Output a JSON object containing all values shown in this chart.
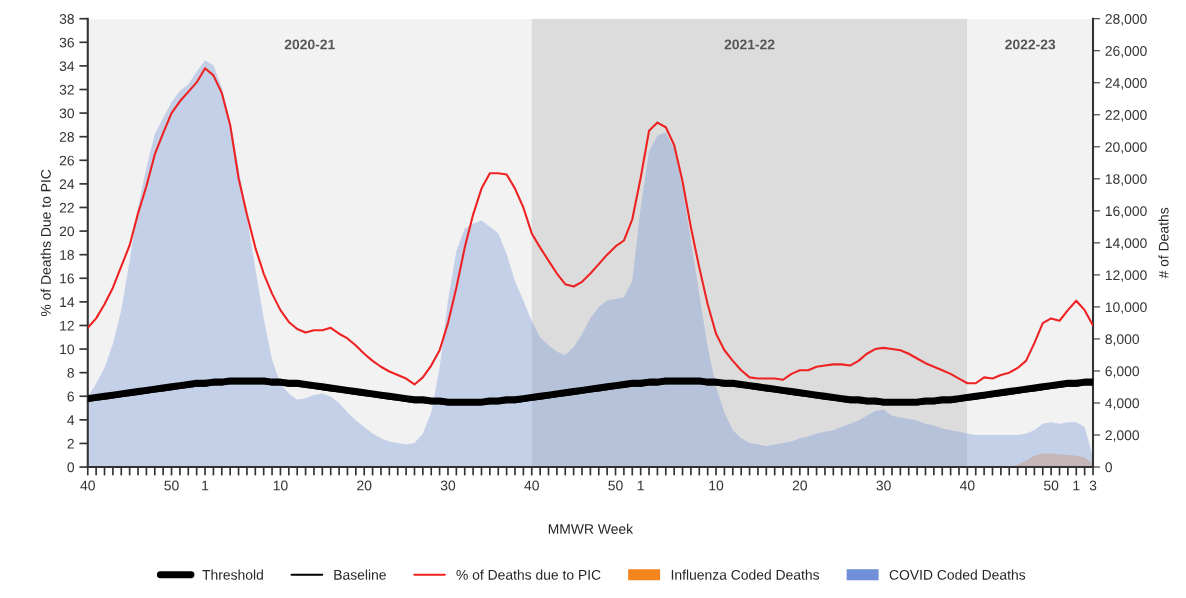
{
  "chart_data": {
    "type": "line",
    "xlabel": "MMWR Week",
    "ylabel": "% of Deaths Due to PIC",
    "y2label": "# of Deaths",
    "categories": [
      "40",
      null,
      null,
      null,
      null,
      null,
      null,
      null,
      null,
      null,
      "50",
      null,
      null,
      null,
      "1",
      null,
      null,
      null,
      null,
      null,
      null,
      null,
      null,
      "10",
      null,
      null,
      null,
      null,
      null,
      null,
      null,
      null,
      null,
      "20",
      null,
      null,
      null,
      null,
      null,
      null,
      null,
      null,
      null,
      "30",
      null,
      null,
      null,
      null,
      null,
      null,
      null,
      null,
      null,
      "40",
      null,
      null,
      null,
      null,
      null,
      null,
      null,
      null,
      null,
      "50",
      null,
      null,
      "1",
      null,
      null,
      null,
      null,
      null,
      null,
      null,
      null,
      "10",
      null,
      null,
      null,
      null,
      null,
      null,
      null,
      null,
      null,
      "20",
      null,
      null,
      null,
      null,
      null,
      null,
      null,
      null,
      null,
      "30",
      null,
      null,
      null,
      null,
      null,
      null,
      null,
      null,
      null,
      "40",
      null,
      null,
      null,
      null,
      null,
      null,
      null,
      null,
      null,
      "50",
      null,
      null,
      "1",
      null,
      "3"
    ],
    "ylim": [
      0,
      38
    ],
    "yticks": [
      0,
      2,
      4,
      6,
      8,
      10,
      12,
      14,
      16,
      18,
      20,
      22,
      24,
      26,
      28,
      30,
      32,
      34,
      36,
      38
    ],
    "y2lim": [
      0,
      28000
    ],
    "y2ticks": [
      0,
      {
        "value": 2000,
        "label": "2,000"
      },
      {
        "value": 4000,
        "label": "4,000"
      },
      {
        "value": 6000,
        "label": "6,000"
      },
      {
        "value": 8000,
        "label": "8,000"
      },
      {
        "value": 10000,
        "label": "10,000"
      },
      {
        "value": 12000,
        "label": "12,000"
      },
      {
        "value": 14000,
        "label": "14,000"
      },
      {
        "value": 16000,
        "label": "16,000"
      },
      {
        "value": 18000,
        "label": "18,000"
      },
      {
        "value": 20000,
        "label": "20,000"
      },
      {
        "value": 22000,
        "label": "22,000"
      },
      {
        "value": 24000,
        "label": "24,000"
      },
      {
        "value": 26000,
        "label": "26,000"
      },
      {
        "value": 28000,
        "label": "28,000"
      }
    ],
    "annotations": [
      "2020-21",
      "2021-22",
      "2022-23"
    ],
    "grid": false,
    "legend": "bottom",
    "series": [
      {
        "name": "Threshold",
        "color": "#000000",
        "values": [
          5.8,
          5.9,
          6.0,
          6.1,
          6.2,
          6.3,
          6.4,
          6.5,
          6.6,
          6.7,
          6.8,
          6.9,
          7.0,
          7.1,
          7.1,
          7.2,
          7.2,
          7.3,
          7.3,
          7.3,
          7.3,
          7.3,
          7.2,
          7.2,
          7.1,
          7.1,
          7.0,
          6.9,
          6.8,
          6.7,
          6.6,
          6.5,
          6.4,
          6.3,
          6.2,
          6.1,
          6.0,
          5.9,
          5.8,
          5.7,
          5.7,
          5.6,
          5.6,
          5.5,
          5.5,
          5.5,
          5.5,
          5.5,
          5.6,
          5.6,
          5.7,
          5.7,
          5.8,
          5.9,
          6.0,
          6.1,
          6.2,
          6.3,
          6.4,
          6.5,
          6.6,
          6.7,
          6.8,
          6.9,
          7.0,
          7.1,
          7.1,
          7.2,
          7.2,
          7.3,
          7.3,
          7.3,
          7.3,
          7.3,
          7.2,
          7.2,
          7.1,
          7.1,
          7.0,
          6.9,
          6.8,
          6.7,
          6.6,
          6.5,
          6.4,
          6.3,
          6.2,
          6.1,
          6.0,
          5.9,
          5.8,
          5.7,
          5.7,
          5.6,
          5.6,
          5.5,
          5.5,
          5.5,
          5.5,
          5.5,
          5.6,
          5.6,
          5.7,
          5.7,
          5.8,
          5.9,
          6.0,
          6.1,
          6.2,
          6.3,
          6.4,
          6.5,
          6.6,
          6.7,
          6.8,
          6.9,
          7.0,
          7.1,
          7.1,
          7.2,
          7.2
        ]
      },
      {
        "name": "Baseline",
        "color": "#000000",
        "values": [
          5.6,
          5.7,
          5.8,
          5.9,
          6.0,
          6.1,
          6.2,
          6.3,
          6.4,
          6.5,
          6.6,
          6.7,
          6.8,
          6.9,
          6.9,
          7.0,
          7.0,
          7.1,
          7.1,
          7.1,
          7.1,
          7.1,
          7.0,
          7.0,
          6.9,
          6.9,
          6.8,
          6.7,
          6.6,
          6.5,
          6.4,
          6.3,
          6.2,
          6.1,
          6.0,
          5.9,
          5.8,
          5.7,
          5.6,
          5.5,
          5.5,
          5.4,
          5.4,
          5.3,
          5.3,
          5.3,
          5.3,
          5.3,
          5.4,
          5.4,
          5.5,
          5.5,
          5.6,
          5.7,
          5.8,
          5.9,
          6.0,
          6.1,
          6.2,
          6.3,
          6.4,
          6.5,
          6.6,
          6.7,
          6.8,
          6.9,
          6.9,
          7.0,
          7.0,
          7.1,
          7.1,
          7.1,
          7.1,
          7.1,
          7.0,
          7.0,
          6.9,
          6.9,
          6.8,
          6.7,
          6.6,
          6.5,
          6.4,
          6.3,
          6.2,
          6.1,
          6.0,
          5.9,
          5.8,
          5.7,
          5.6,
          5.5,
          5.5,
          5.4,
          5.4,
          5.3,
          5.3,
          5.3,
          5.3,
          5.3,
          5.4,
          5.4,
          5.5,
          5.5,
          5.6,
          5.7,
          5.8,
          5.9,
          6.0,
          6.1,
          6.2,
          6.3,
          6.4,
          6.5,
          6.6,
          6.7,
          6.8,
          6.9,
          6.9,
          7.0,
          7.0
        ]
      },
      {
        "name": "% of Deaths due to PIC",
        "color": "#ee2222",
        "values": [
          11.8,
          12.6,
          13.8,
          15.2,
          17.0,
          18.8,
          21.5,
          23.8,
          26.5,
          28.3,
          30.0,
          31.0,
          31.8,
          32.6,
          33.8,
          33.2,
          31.7,
          29.0,
          24.5,
          21.4,
          18.6,
          16.4,
          14.7,
          13.3,
          12.3,
          11.7,
          11.4,
          11.6,
          11.6,
          11.8,
          11.3,
          10.9,
          10.3,
          9.6,
          9.0,
          8.5,
          8.1,
          7.8,
          7.5,
          7.0,
          7.6,
          8.6,
          9.9,
          12.2,
          15.2,
          18.6,
          21.4,
          23.6,
          24.9,
          24.9,
          24.8,
          23.6,
          22.0,
          19.8,
          18.6,
          17.5,
          16.4,
          15.5,
          15.3,
          15.7,
          16.4,
          17.2,
          18.0,
          18.7,
          19.2,
          21.0,
          24.5,
          28.5,
          29.2,
          28.8,
          27.3,
          24.2,
          20.3,
          16.9,
          13.8,
          11.3,
          9.9,
          9.0,
          8.2,
          7.6,
          7.5,
          7.5,
          7.5,
          7.4,
          7.9,
          8.2,
          8.2,
          8.5,
          8.6,
          8.7,
          8.7,
          8.6,
          9.0,
          9.6,
          10.0,
          10.1,
          10.0,
          9.9,
          9.6,
          9.2,
          8.8,
          8.5,
          8.2,
          7.9,
          7.5,
          7.1,
          7.1,
          7.6,
          7.5,
          7.8,
          8.0,
          8.4,
          9.0,
          10.5,
          12.2,
          12.6,
          12.4,
          13.3,
          14.1,
          13.3,
          12.0
        ]
      },
      {
        "name": "Influenza Coded Deaths",
        "type": "area",
        "axis": "y2",
        "color": "#f5851f",
        "values": [
          0,
          0,
          0,
          0,
          0,
          0,
          0,
          0,
          0,
          0,
          0,
          0,
          0,
          0,
          0,
          0,
          0,
          0,
          0,
          0,
          0,
          0,
          0,
          0,
          0,
          0,
          0,
          0,
          0,
          0,
          0,
          0,
          0,
          0,
          0,
          0,
          0,
          0,
          0,
          0,
          0,
          0,
          0,
          0,
          0,
          0,
          0,
          0,
          0,
          0,
          0,
          0,
          0,
          0,
          0,
          0,
          0,
          0,
          0,
          0,
          0,
          0,
          0,
          0,
          0,
          0,
          0,
          0,
          0,
          0,
          0,
          0,
          0,
          0,
          0,
          0,
          0,
          0,
          0,
          0,
          0,
          0,
          0,
          0,
          0,
          0,
          0,
          0,
          0,
          0,
          0,
          0,
          0,
          0,
          0,
          0,
          0,
          0,
          0,
          0,
          0,
          0,
          0,
          0,
          0,
          0,
          0,
          0,
          0,
          0,
          50,
          150,
          400,
          700,
          850,
          850,
          800,
          750,
          700,
          600,
          200
        ]
      },
      {
        "name": "COVID Coded Deaths",
        "type": "area",
        "axis": "y2",
        "color": "#6f8fd6",
        "values": [
          4400,
          5200,
          6200,
          7700,
          9800,
          12900,
          16200,
          18700,
          20800,
          21800,
          22800,
          23500,
          23900,
          24700,
          25400,
          25100,
          23700,
          21600,
          18700,
          15600,
          12400,
          9300,
          6700,
          5200,
          4600,
          4200,
          4300,
          4500,
          4600,
          4400,
          4000,
          3400,
          2900,
          2500,
          2100,
          1800,
          1600,
          1500,
          1400,
          1500,
          2100,
          3400,
          6200,
          10400,
          13500,
          14900,
          15200,
          15400,
          15000,
          14600,
          13300,
          11600,
          10400,
          9100,
          8100,
          7600,
          7200,
          7000,
          7500,
          8300,
          9300,
          10000,
          10400,
          10500,
          10600,
          11600,
          16200,
          19700,
          20700,
          20900,
          19900,
          17400,
          14100,
          10800,
          7500,
          5000,
          3400,
          2300,
          1800,
          1500,
          1400,
          1300,
          1400,
          1500,
          1600,
          1800,
          1900,
          2100,
          2200,
          2300,
          2500,
          2700,
          2900,
          3200,
          3500,
          3600,
          3200,
          3100,
          3000,
          2900,
          2700,
          2600,
          2400,
          2300,
          2200,
          2100,
          2000,
          2000,
          2000,
          2000,
          2000,
          2000,
          2100,
          2300,
          2700,
          2800,
          2700,
          2800,
          2800,
          2500,
          600
        ]
      }
    ]
  }
}
